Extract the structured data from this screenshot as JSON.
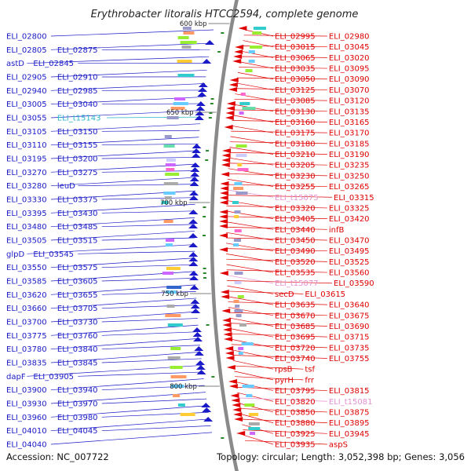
{
  "title": "Erythrobacter litoralis HTCC2594, complete genome",
  "accession_text": "Accession: NC_007722",
  "topology_text": "Topology: circular; Length: 3,052,398 bp; Genes: 3,056",
  "colors": {
    "forward": "#1a1ac8",
    "reverse": "#e00000",
    "trna": "#2ab7c9",
    "rrna": "#e48fd0",
    "backbone": "#8a8a8a"
  },
  "ticks": [
    "600 kbp",
    "650 kbp",
    "700 kbp",
    "750 kbp",
    "800 kbp"
  ],
  "left_labels": [
    {
      "text": "ELI_02800",
      "type": "gene"
    },
    {
      "text": "ELI_02805",
      "type": "gene"
    },
    {
      "text": "ELI_02875",
      "type": "gene"
    },
    {
      "text": "astD",
      "type": "gene"
    },
    {
      "text": "ELI_02845",
      "type": "gene"
    },
    {
      "text": "ELI_02905",
      "type": "gene"
    },
    {
      "text": "ELI_02910",
      "type": "gene"
    },
    {
      "text": "ELI_02940",
      "type": "gene"
    },
    {
      "text": "ELI_02985",
      "type": "gene"
    },
    {
      "text": "ELI_03005",
      "type": "gene"
    },
    {
      "text": "ELI_03040",
      "type": "gene"
    },
    {
      "text": "ELI_03055",
      "type": "gene"
    },
    {
      "text": "ELI_t15143",
      "type": "trna"
    },
    {
      "text": "ELI_03105",
      "type": "gene"
    },
    {
      "text": "ELI_03150",
      "type": "gene"
    },
    {
      "text": "ELI_03110",
      "type": "gene"
    },
    {
      "text": "ELI_03155",
      "type": "gene"
    },
    {
      "text": "ELI_03195",
      "type": "gene"
    },
    {
      "text": "ELI_03200",
      "type": "gene"
    },
    {
      "text": "ELI_03270",
      "type": "gene"
    },
    {
      "text": "ELI_03275",
      "type": "gene"
    },
    {
      "text": "ELI_03280",
      "type": "gene"
    },
    {
      "text": "leuD",
      "type": "gene"
    },
    {
      "text": "ELI_03330",
      "type": "gene"
    },
    {
      "text": "ELI_03375",
      "type": "gene"
    },
    {
      "text": "ELI_03395",
      "type": "gene"
    },
    {
      "text": "ELI_03430",
      "type": "gene"
    },
    {
      "text": "ELI_03480",
      "type": "gene"
    },
    {
      "text": "ELI_03485",
      "type": "gene"
    },
    {
      "text": "ELI_03505",
      "type": "gene"
    },
    {
      "text": "ELI_03515",
      "type": "gene"
    },
    {
      "text": "glpD",
      "type": "gene"
    },
    {
      "text": "ELI_03545",
      "type": "gene"
    },
    {
      "text": "ELI_03550",
      "type": "gene"
    },
    {
      "text": "ELI_03575",
      "type": "gene"
    },
    {
      "text": "ELI_03585",
      "type": "gene"
    },
    {
      "text": "ELI_03605",
      "type": "gene"
    },
    {
      "text": "ELI_03620",
      "type": "gene"
    },
    {
      "text": "ELI_03655",
      "type": "gene"
    },
    {
      "text": "ELI_03660",
      "type": "gene"
    },
    {
      "text": "ELI_03705",
      "type": "gene"
    },
    {
      "text": "ELI_03700",
      "type": "gene"
    },
    {
      "text": "ELI_03730",
      "type": "gene"
    },
    {
      "text": "ELI_03775",
      "type": "gene"
    },
    {
      "text": "ELI_03760",
      "type": "gene"
    },
    {
      "text": "ELI_03780",
      "type": "gene"
    },
    {
      "text": "ELI_03840",
      "type": "gene"
    },
    {
      "text": "ELI_03835",
      "type": "gene"
    },
    {
      "text": "ELI_03845",
      "type": "gene"
    },
    {
      "text": "dapF",
      "type": "gene"
    },
    {
      "text": "ELI_03905",
      "type": "gene"
    },
    {
      "text": "ELI_03900",
      "type": "gene"
    },
    {
      "text": "ELI_03940",
      "type": "gene"
    },
    {
      "text": "ELI_03930",
      "type": "gene"
    },
    {
      "text": "ELI_03970",
      "type": "gene"
    },
    {
      "text": "ELI_03960",
      "type": "gene"
    },
    {
      "text": "ELI_03980",
      "type": "gene"
    },
    {
      "text": "ELI_04010",
      "type": "gene"
    },
    {
      "text": "ELI_04045",
      "type": "gene"
    },
    {
      "text": "ELI_04040",
      "type": "gene"
    }
  ],
  "right_labels": [
    {
      "text": "ELI_02995",
      "type": "gene"
    },
    {
      "text": "ELI_02980",
      "type": "gene"
    },
    {
      "text": "ELI_03015",
      "type": "gene"
    },
    {
      "text": "ELI_03045",
      "type": "gene"
    },
    {
      "text": "ELI_03065",
      "type": "gene"
    },
    {
      "text": "ELI_03020",
      "type": "gene"
    },
    {
      "text": "ELI_03035",
      "type": "gene"
    },
    {
      "text": "ELI_03095",
      "type": "gene"
    },
    {
      "text": "ELI_03050",
      "type": "gene"
    },
    {
      "text": "ELI_03090",
      "type": "gene"
    },
    {
      "text": "ELI_03125",
      "type": "gene"
    },
    {
      "text": "ELI_03070",
      "type": "gene"
    },
    {
      "text": "ELI_03085",
      "type": "gene"
    },
    {
      "text": "ELI_03120",
      "type": "gene"
    },
    {
      "text": "ELI_03130",
      "type": "gene"
    },
    {
      "text": "ELI_03135",
      "type": "gene"
    },
    {
      "text": "ELI_03160",
      "type": "gene"
    },
    {
      "text": "ELI_03165",
      "type": "gene"
    },
    {
      "text": "ELI_03175",
      "type": "gene"
    },
    {
      "text": "ELI_03170",
      "type": "gene"
    },
    {
      "text": "ELI_03180",
      "type": "gene"
    },
    {
      "text": "ELI_03185",
      "type": "gene"
    },
    {
      "text": "ELI_03210",
      "type": "gene"
    },
    {
      "text": "ELI_03190",
      "type": "gene"
    },
    {
      "text": "ELI_03205",
      "type": "gene"
    },
    {
      "text": "ELI_03235",
      "type": "gene"
    },
    {
      "text": "ELI_03230",
      "type": "gene"
    },
    {
      "text": "ELI_03250",
      "type": "gene"
    },
    {
      "text": "ELI_03255",
      "type": "gene"
    },
    {
      "text": "ELI_03265",
      "type": "gene"
    },
    {
      "text": "ELI_t15075",
      "type": "rrna"
    },
    {
      "text": "ELI_03315",
      "type": "gene"
    },
    {
      "text": "ELI_03320",
      "type": "gene"
    },
    {
      "text": "ELI_03325",
      "type": "gene"
    },
    {
      "text": "ELI_03405",
      "type": "gene"
    },
    {
      "text": "ELI_03420",
      "type": "gene"
    },
    {
      "text": "ELI_03440",
      "type": "gene"
    },
    {
      "text": "infB",
      "type": "gene"
    },
    {
      "text": "ELI_03450",
      "type": "gene"
    },
    {
      "text": "ELI_03470",
      "type": "gene"
    },
    {
      "text": "ELI_03490",
      "type": "gene"
    },
    {
      "text": "ELI_03495",
      "type": "gene"
    },
    {
      "text": "ELI_03520",
      "type": "gene"
    },
    {
      "text": "ELI_03525",
      "type": "gene"
    },
    {
      "text": "ELI_03535",
      "type": "gene"
    },
    {
      "text": "ELI_03560",
      "type": "gene"
    },
    {
      "text": "ELI_t15077",
      "type": "rrna"
    },
    {
      "text": "ELI_03590",
      "type": "gene"
    },
    {
      "text": "secD",
      "type": "gene"
    },
    {
      "text": "ELI_03615",
      "type": "gene"
    },
    {
      "text": "ELI_03635",
      "type": "gene"
    },
    {
      "text": "ELI_03640",
      "type": "gene"
    },
    {
      "text": "ELI_03670",
      "type": "gene"
    },
    {
      "text": "ELI_03675",
      "type": "gene"
    },
    {
      "text": "ELI_03685",
      "type": "gene"
    },
    {
      "text": "ELI_03690",
      "type": "gene"
    },
    {
      "text": "ELI_03695",
      "type": "gene"
    },
    {
      "text": "ELI_03715",
      "type": "gene"
    },
    {
      "text": "ELI_03720",
      "type": "gene"
    },
    {
      "text": "ELI_03735",
      "type": "gene"
    },
    {
      "text": "ELI_03740",
      "type": "gene"
    },
    {
      "text": "ELI_03755",
      "type": "gene"
    },
    {
      "text": "rpsB",
      "type": "gene"
    },
    {
      "text": "tsf",
      "type": "gene"
    },
    {
      "text": "pyrH",
      "type": "gene"
    },
    {
      "text": "frr",
      "type": "gene"
    },
    {
      "text": "ELI_03795",
      "type": "gene"
    },
    {
      "text": "ELI_03815",
      "type": "gene"
    },
    {
      "text": "ELI_03820",
      "type": "gene"
    },
    {
      "text": "ELI_t15081",
      "type": "rrna"
    },
    {
      "text": "ELI_03850",
      "type": "gene"
    },
    {
      "text": "ELI_03875",
      "type": "gene"
    },
    {
      "text": "ELI_03880",
      "type": "gene"
    },
    {
      "text": "ELI_03895",
      "type": "gene"
    },
    {
      "text": "ELI_03925",
      "type": "gene"
    },
    {
      "text": "ELI_03945",
      "type": "gene"
    },
    {
      "text": "ELI_03935",
      "type": "gene"
    },
    {
      "text": "aspS",
      "type": "gene"
    }
  ]
}
